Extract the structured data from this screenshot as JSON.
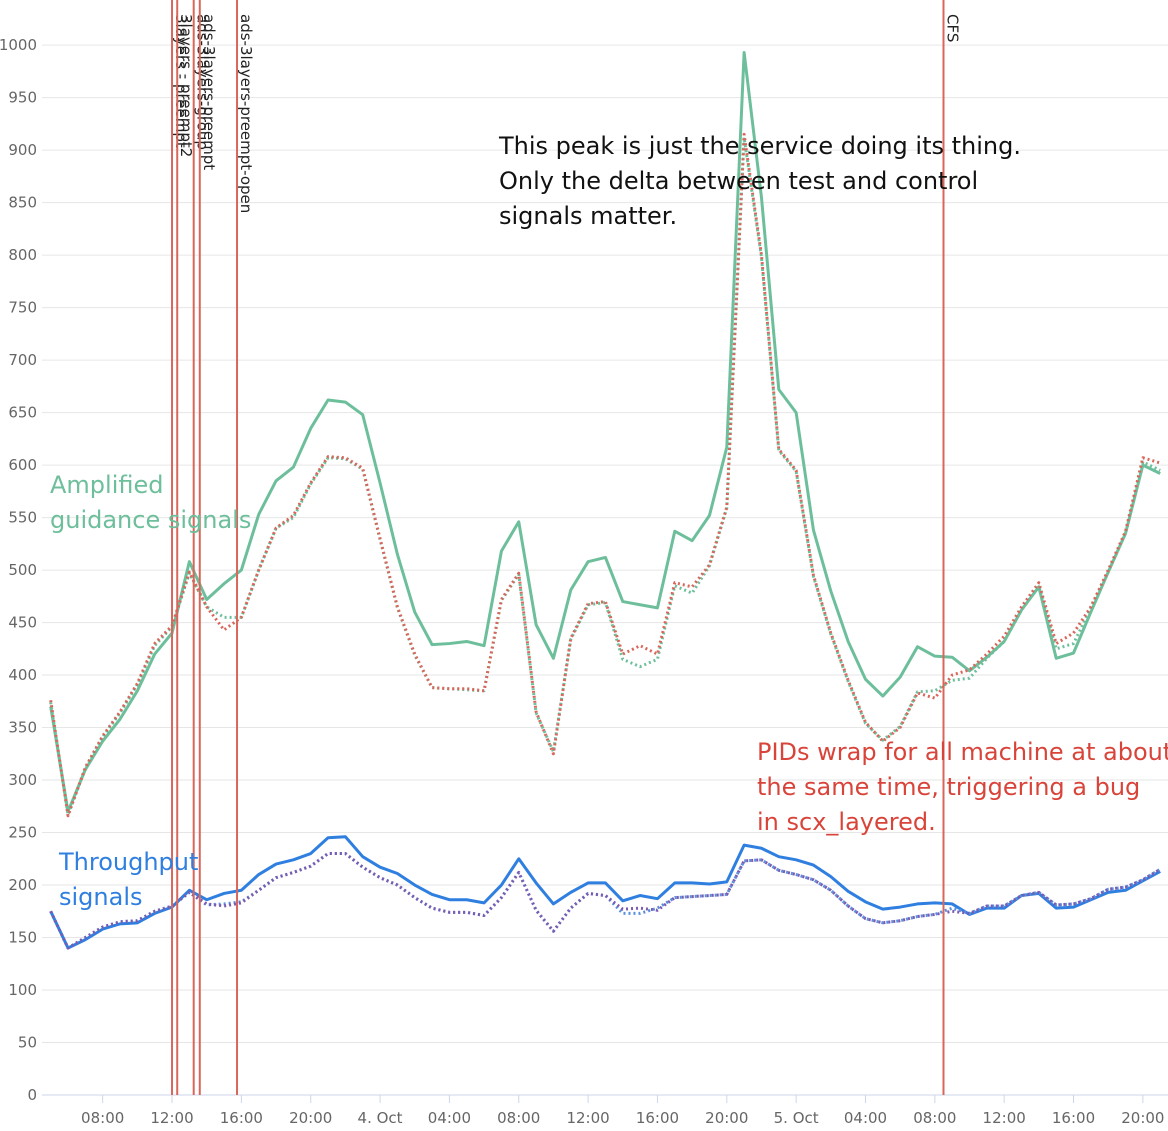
{
  "chart_data": {
    "type": "line",
    "x": [
      5,
      6,
      7,
      8,
      9,
      10,
      11,
      12,
      13,
      14,
      15,
      16,
      17,
      18,
      19,
      20,
      21,
      22,
      23,
      24,
      25,
      26,
      27,
      28,
      29,
      30,
      31,
      32,
      33,
      34,
      35,
      36,
      37,
      38,
      39,
      40,
      41,
      42,
      43,
      44,
      45,
      46,
      47,
      48,
      49,
      50,
      51,
      52,
      53,
      54,
      55,
      56,
      57,
      58,
      59,
      60,
      61,
      62,
      63,
      64,
      65,
      66,
      67,
      68,
      69
    ],
    "xlim": [
      4.5,
      69.45
    ],
    "xticks": [
      {
        "value": 8,
        "label": "08:00"
      },
      {
        "value": 12,
        "label": "12:00"
      },
      {
        "value": 16,
        "label": "16:00"
      },
      {
        "value": 20,
        "label": "20:00"
      },
      {
        "value": 24,
        "label": "4. Oct"
      },
      {
        "value": 28,
        "label": "04:00"
      },
      {
        "value": 32,
        "label": "08:00"
      },
      {
        "value": 36,
        "label": "12:00"
      },
      {
        "value": 40,
        "label": "16:00"
      },
      {
        "value": 44,
        "label": "20:00"
      },
      {
        "value": 48,
        "label": "5. Oct"
      },
      {
        "value": 52,
        "label": "04:00"
      },
      {
        "value": 56,
        "label": "08:00"
      },
      {
        "value": 60,
        "label": "12:00"
      },
      {
        "value": 64,
        "label": "16:00"
      },
      {
        "value": 68,
        "label": "20:00"
      }
    ],
    "ylim": [
      0,
      1043
    ],
    "yticks": [
      0,
      50,
      100,
      150,
      200,
      250,
      300,
      350,
      400,
      450,
      500,
      550,
      600,
      650,
      700,
      750,
      800,
      850,
      900,
      950,
      1000
    ],
    "grid": true,
    "series": [
      {
        "color": "#6dbf9c",
        "dash": false,
        "values": [
          370,
          270,
          310,
          337,
          358,
          385,
          420,
          440,
          508,
          472,
          487,
          500,
          553,
          585,
          598,
          635,
          662,
          660,
          648,
          583,
          515,
          460,
          429,
          430,
          432,
          428,
          518,
          546,
          448,
          416,
          481,
          508,
          512,
          470,
          467,
          464,
          537,
          528,
          552,
          617,
          993,
          855,
          672,
          650,
          538,
          480,
          432,
          396,
          380,
          398,
          427,
          418,
          417,
          404,
          417,
          432,
          462,
          484,
          416,
          421,
          460,
          498,
          535,
          600,
          592
        ]
      },
      {
        "color": "#6dbf9c",
        "dash": true,
        "values": [
          374,
          267,
          311,
          341,
          364,
          391,
          428,
          446,
          497,
          465,
          455,
          455,
          500,
          540,
          550,
          582,
          607,
          606,
          596,
          529,
          464,
          419,
          388,
          387,
          386,
          385,
          471,
          496,
          364,
          327,
          434,
          467,
          469,
          415,
          408,
          415,
          485,
          478,
          504,
          559,
          912,
          798,
          614,
          594,
          494,
          439,
          394,
          354,
          338,
          351,
          384,
          385,
          395,
          397,
          416,
          432,
          462,
          485,
          425,
          430,
          464,
          498,
          535,
          603,
          595
        ]
      },
      {
        "color": "#d9665a",
        "dash": true,
        "values": [
          376,
          266,
          312,
          342,
          365,
          392,
          430,
          447,
          498,
          465,
          443,
          455,
          500,
          540,
          552,
          583,
          608,
          607,
          597,
          530,
          465,
          420,
          388,
          387,
          387,
          385,
          472,
          497,
          365,
          325,
          435,
          468,
          470,
          420,
          428,
          420,
          488,
          484,
          505,
          560,
          915,
          800,
          615,
          595,
          495,
          440,
          395,
          355,
          337,
          350,
          383,
          378,
          400,
          405,
          420,
          437,
          465,
          488,
          430,
          440,
          465,
          500,
          537,
          607,
          602
        ]
      },
      {
        "color": "#2f7fe0",
        "dash": false,
        "values": [
          175,
          140,
          148,
          158,
          163,
          164,
          173,
          179,
          195,
          186,
          192,
          195,
          210,
          220,
          224,
          230,
          245,
          246,
          227,
          217,
          211,
          200,
          191,
          186,
          186,
          183,
          200,
          225,
          202,
          182,
          193,
          202,
          202,
          185,
          190,
          187,
          202,
          202,
          201,
          203,
          238,
          235,
          227,
          224,
          219,
          208,
          194,
          184,
          177,
          179,
          182,
          183,
          182,
          172,
          178,
          178,
          190,
          192,
          178,
          179,
          186,
          193,
          195,
          204,
          213
        ]
      },
      {
        "color": "#5b8fe0",
        "dash": true,
        "values": [
          175,
          140,
          150,
          160,
          165,
          166,
          175,
          180,
          193,
          181,
          182,
          184,
          195,
          207,
          212,
          218,
          230,
          230,
          217,
          207,
          200,
          188,
          178,
          174,
          174,
          171,
          188,
          212,
          176,
          156,
          178,
          192,
          190,
          173,
          173,
          178,
          188,
          189,
          190,
          191,
          223,
          224,
          214,
          210,
          205,
          195,
          180,
          168,
          164,
          166,
          170,
          172,
          178,
          173,
          180,
          180,
          190,
          193,
          181,
          182,
          187,
          196,
          198,
          205,
          215
        ]
      },
      {
        "color": "#7b5bb0",
        "dash": true,
        "values": [
          175,
          140,
          150,
          160,
          165,
          166,
          175,
          180,
          193,
          182,
          180,
          183,
          195,
          207,
          212,
          218,
          230,
          230,
          217,
          207,
          200,
          188,
          178,
          174,
          174,
          171,
          188,
          212,
          176,
          156,
          178,
          192,
          190,
          177,
          178,
          176,
          188,
          189,
          190,
          191,
          223,
          224,
          214,
          210,
          205,
          195,
          180,
          168,
          164,
          166,
          170,
          172,
          175,
          173,
          180,
          180,
          190,
          193,
          181,
          182,
          187,
          196,
          198,
          205,
          215
        ]
      }
    ],
    "markers": [
      {
        "x": 12.0,
        "label": "3layers - preempt",
        "color": "#d9665a"
      },
      {
        "x": 12.3,
        "label": "3layers - preempt2",
        "color": "#d9665a"
      },
      {
        "x": 13.25,
        "label": "ads-3layers-group",
        "color": "#d9665a"
      },
      {
        "x": 13.6,
        "label": "ads-3layers-preempt",
        "color": "#d9665a"
      },
      {
        "x": 15.75,
        "label": "ads-3layers-preempt-open",
        "color": "#d9665a"
      },
      {
        "x": 56.5,
        "label": "CFS",
        "color": "#d9665a"
      }
    ],
    "annotations": [
      {
        "lines": [
          "Amplified",
          "guidance signals"
        ],
        "color": "#6dbf9c"
      },
      {
        "lines": [
          "Throughput",
          "signals"
        ],
        "color": "#2f7fe0"
      },
      {
        "lines": [
          "This peak is just the service doing its thing.",
          "Only the delta between test and control",
          "signals matter."
        ],
        "color": "#111111"
      },
      {
        "lines": [
          "PIDs wrap for all machine at about",
          "the same time, triggering a bug",
          "in scx_layered."
        ],
        "color": "#d9443a"
      }
    ]
  }
}
